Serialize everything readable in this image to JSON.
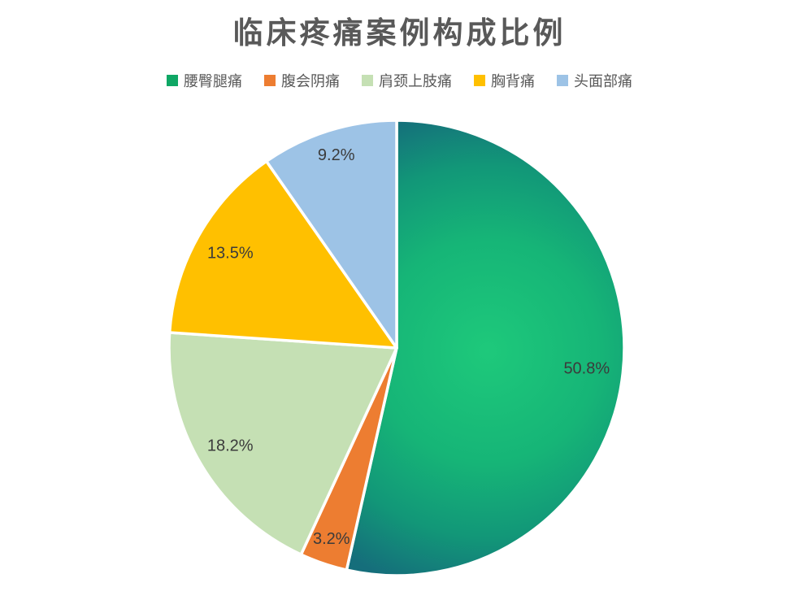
{
  "page": {
    "background": "#FFFFFF"
  },
  "chart_data": {
    "type": "pie",
    "title": "临床疼痛案例构成比例",
    "title_color": "#595959",
    "categories": [
      "腰臀腿痛",
      "腹会阴痛",
      "肩颈上肢痛",
      "胸背痛",
      "头面部痛"
    ],
    "values": [
      50.8,
      3.2,
      18.2,
      13.5,
      9.2
    ],
    "labels": [
      "50.8%",
      "3.2%",
      "18.2%",
      "13.5%",
      "9.2%"
    ],
    "colors": [
      "green-radial-gradient",
      "#ED7D31",
      "#C5E0B4",
      "#FFC000",
      "#9DC3E6"
    ],
    "green_gradient_stops": [
      "#1EC97B",
      "#16B577",
      "#129778",
      "#156E7B"
    ],
    "legend_marker_colors": [
      "#0FA765",
      "#ED7D31",
      "#C5E0B4",
      "#FFC000",
      "#9DC3E6"
    ],
    "legend_text_color": "#595959",
    "legend_position": "top",
    "label_color": "#3B3B3B",
    "slice_border_color": "#FFFFFF",
    "start_angle_deg": 0,
    "clockwise": true
  }
}
